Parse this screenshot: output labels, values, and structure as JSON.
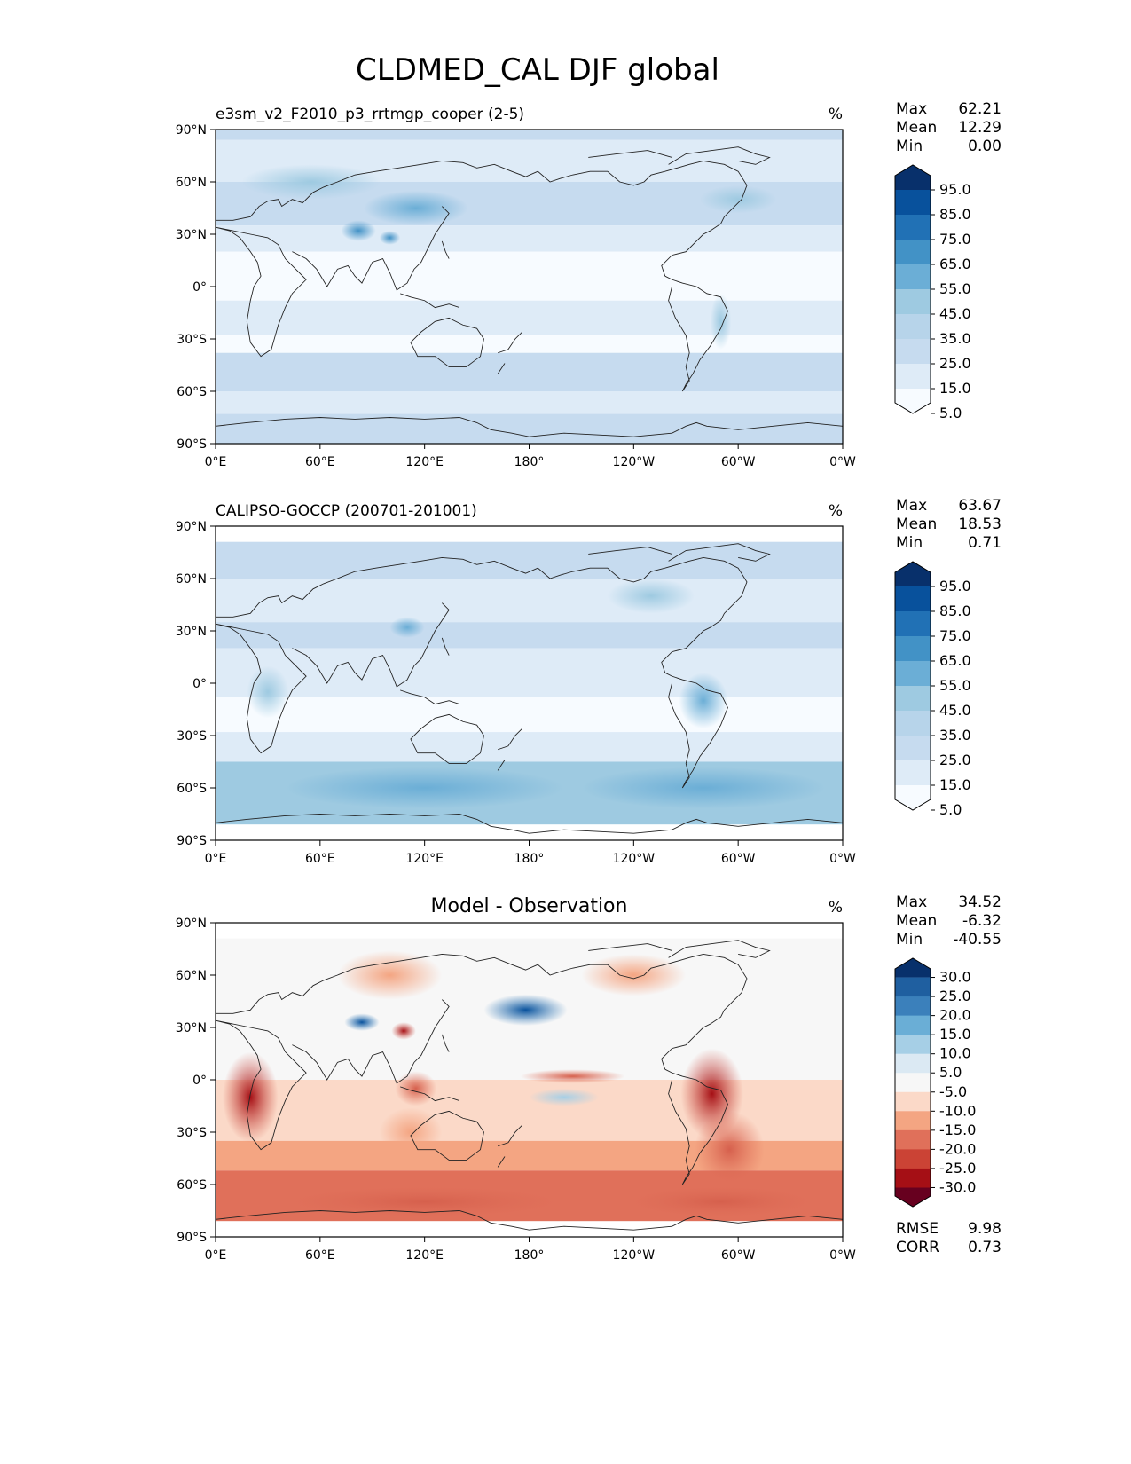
{
  "figure": {
    "title": "CLDMED_CAL DJF global"
  },
  "lat_labels": [
    "90°N",
    "60°N",
    "30°N",
    "0°",
    "30°S",
    "60°S",
    "90°S"
  ],
  "lon_labels": [
    "0°E",
    "60°E",
    "120°E",
    "180°",
    "120°W",
    "60°W",
    "0°W"
  ],
  "colors": {
    "blues": [
      "#f7fbff",
      "#deebf7",
      "#c6dbef",
      "#b7d4ea",
      "#9ecae1",
      "#6baed6",
      "#4292c6",
      "#2171b5",
      "#08519c",
      "#08306b"
    ],
    "diverging": [
      "#67001f",
      "#a50f15",
      "#cb4335",
      "#e0705a",
      "#f4a582",
      "#fbd9c8",
      "#f7f7f7",
      "#dbe9f3",
      "#a6cfe6",
      "#6aaed6",
      "#3b80bb",
      "#1f5fa0",
      "#08306b"
    ]
  },
  "panels": [
    {
      "title_left": "e3sm_v2_F2010_p3_rrtmgp_cooper (2-5)",
      "title_center": "",
      "units": "%",
      "stats": [
        {
          "label": "Max",
          "value": "62.21"
        },
        {
          "label": "Mean",
          "value": "12.29"
        },
        {
          "label": "Min",
          "value": "0.00"
        }
      ],
      "colorbar_ticks": [
        "95.0",
        "85.0",
        "75.0",
        "65.0",
        "55.0",
        "45.0",
        "35.0",
        "25.0",
        "15.0",
        "5.0"
      ],
      "extra_stats": []
    },
    {
      "title_left": "CALIPSO-GOCCP (200701-201001)",
      "title_center": "",
      "units": "%",
      "stats": [
        {
          "label": "Max",
          "value": "63.67"
        },
        {
          "label": "Mean",
          "value": "18.53"
        },
        {
          "label": "Min",
          "value": "0.71"
        }
      ],
      "colorbar_ticks": [
        "95.0",
        "85.0",
        "75.0",
        "65.0",
        "55.0",
        "45.0",
        "35.0",
        "25.0",
        "15.0",
        "5.0"
      ],
      "extra_stats": []
    },
    {
      "title_left": "",
      "title_center": "Model - Observation",
      "units": "%",
      "stats": [
        {
          "label": "Max",
          "value": "34.52"
        },
        {
          "label": "Mean",
          "value": "-6.32"
        },
        {
          "label": "Min",
          "value": "-40.55"
        }
      ],
      "colorbar_ticks": [
        "30.0",
        "25.0",
        "20.0",
        "15.0",
        "10.0",
        "5.0",
        "-5.0",
        "-10.0",
        "-15.0",
        "-20.0",
        "-25.0",
        "-30.0"
      ],
      "extra_stats": [
        {
          "label": "RMSE",
          "value": "9.98"
        },
        {
          "label": "CORR",
          "value": "0.73"
        }
      ]
    }
  ]
}
